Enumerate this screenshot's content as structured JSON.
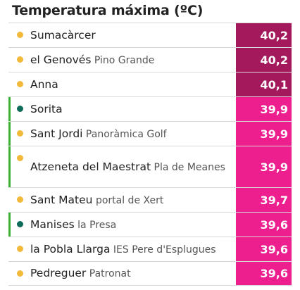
{
  "title": "Temperatura máxima (ºC)",
  "colors": {
    "dot_yellow": "#f2b93b",
    "dot_teal": "#0f6b5a",
    "value_dark": "#a3195b",
    "value_pink": "#ed1e8e",
    "highlight_bar": "#3cb035"
  },
  "rows": [
    {
      "name": "Sumacàrcer",
      "sub": "",
      "value": "40,2",
      "dot": "dot_yellow",
      "value_color": "value_dark",
      "highlight": false,
      "h": 35
    },
    {
      "name": "el Genovés",
      "sub": "Pino Grande",
      "value": "40,2",
      "dot": "dot_yellow",
      "value_color": "value_dark",
      "highlight": false,
      "h": 35
    },
    {
      "name": "Anna",
      "sub": "",
      "value": "40,1",
      "dot": "dot_yellow",
      "value_color": "value_dark",
      "highlight": false,
      "h": 35
    },
    {
      "name": "Sorita",
      "sub": "",
      "value": "39,9",
      "dot": "dot_teal",
      "value_color": "value_pink",
      "highlight": true,
      "h": 35
    },
    {
      "name": "Sant Jordi",
      "sub": "Panoràmica Golf",
      "value": "39,9",
      "dot": "dot_yellow",
      "value_color": "value_pink",
      "highlight": true,
      "h": 35
    },
    {
      "name": "Atzeneta del Maestrat",
      "sub": "Pla de Meanes",
      "value": "39,9",
      "dot": "dot_yellow",
      "value_color": "value_pink",
      "highlight": true,
      "h": 59
    },
    {
      "name": "Sant Mateu",
      "sub": "portal de Xert",
      "value": "39,7",
      "dot": "dot_yellow",
      "value_color": "value_pink",
      "highlight": false,
      "h": 35
    },
    {
      "name": "Manises",
      "sub": "la Presa",
      "value": "39,6",
      "dot": "dot_teal",
      "value_color": "value_pink",
      "highlight": true,
      "h": 35
    },
    {
      "name": "la Pobla Llarga",
      "sub": "IES Pere d'Esplugues",
      "value": "39,6",
      "dot": "dot_yellow",
      "value_color": "value_pink",
      "highlight": false,
      "h": 35
    },
    {
      "name": "Pedreguer",
      "sub": "Patronat",
      "value": "39,6",
      "dot": "dot_yellow",
      "value_color": "value_pink",
      "highlight": false,
      "h": 35
    }
  ]
}
